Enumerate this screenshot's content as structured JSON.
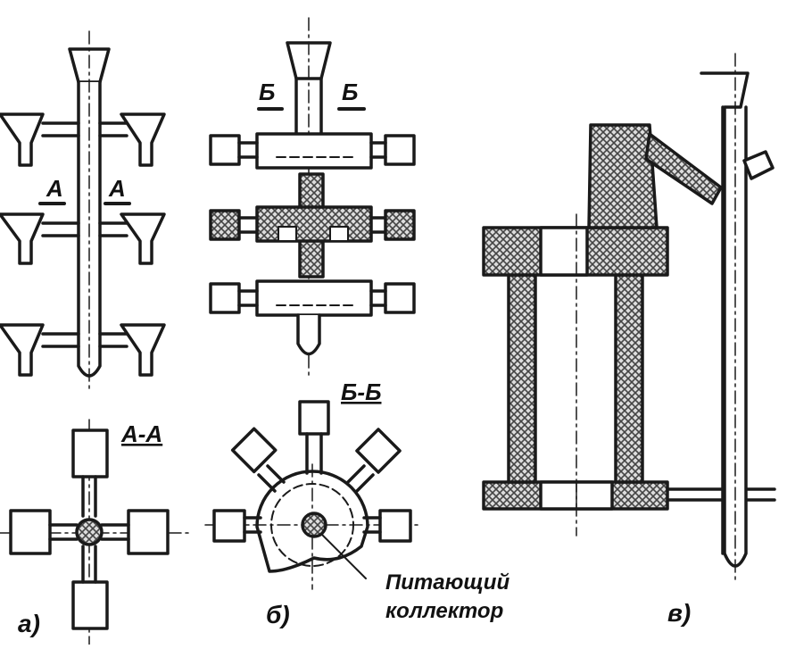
{
  "labels": {
    "section_a": "А",
    "section_a_right": "А",
    "section_b": "Б",
    "section_b_right": "Б",
    "view_aa": "А-А",
    "view_bb": "Б-Б",
    "feed_collector_line1": "Питающий",
    "feed_collector_line2": "коллектор",
    "fig_a": "а)",
    "fig_b": "б)",
    "fig_v": "в)"
  },
  "colors": {
    "ink": "#1a1a1a",
    "hatch_fill": "#d8d8d8",
    "background": "#ffffff"
  }
}
